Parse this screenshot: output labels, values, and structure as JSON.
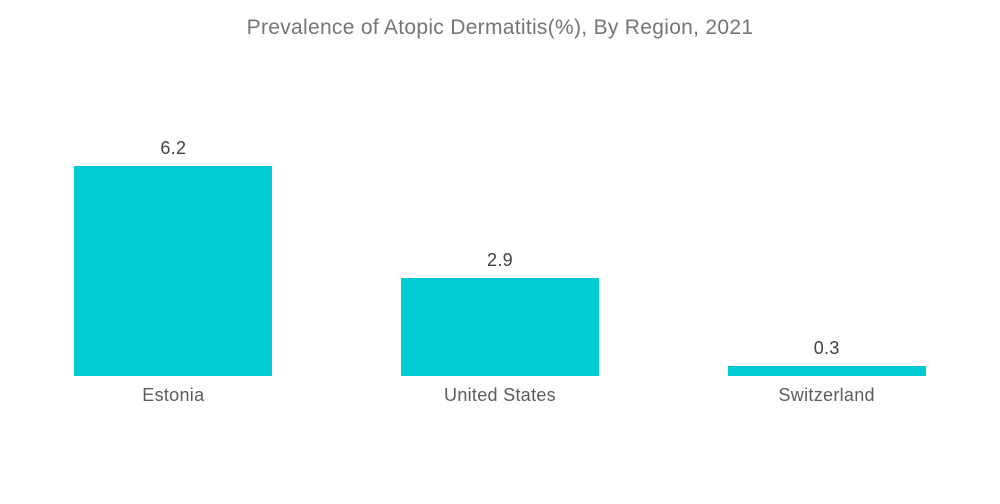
{
  "title": "Prevalence of Atopic Dermatitis(%), By Region, 2021",
  "colors": {
    "background": "#FFFFFF",
    "bar": "#00CBD1",
    "title_text": "#757575",
    "value_text": "#424242",
    "category_text": "#5C5C5C"
  },
  "chart_data": {
    "type": "bar",
    "title": "Prevalence of Atopic Dermatitis(%), By Region, 2021",
    "categories": [
      "Estonia",
      "United States",
      "Switzerland"
    ],
    "values": [
      6.2,
      2.9,
      0.3
    ],
    "value_labels": [
      "6.2",
      "2.9",
      "0.3"
    ],
    "series": [
      {
        "name": "Prevalence of Atopic Dermatitis (%)",
        "values": [
          6.2,
          2.9,
          0.3
        ]
      }
    ],
    "xlabel": "",
    "ylabel": "",
    "ylim": [
      0,
      6.2
    ],
    "grid": false,
    "legend": false,
    "axis_lines": false,
    "orientation": "vertical"
  }
}
